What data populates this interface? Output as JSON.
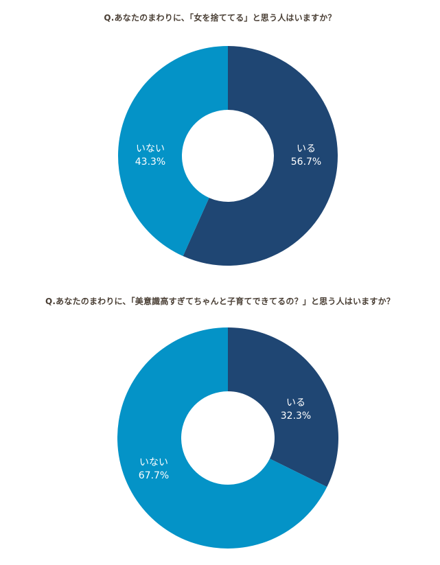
{
  "chart_data": [
    {
      "type": "pie",
      "title": "Q.あなたのまわりに、「女を捨ててる」と思う人はいますか？",
      "categories": [
        "いる",
        "いない"
      ],
      "values": [
        56.7,
        43.3
      ],
      "value_labels": [
        "56.7%",
        "43.3%"
      ],
      "colors": [
        "#1f4673",
        "#0493c7"
      ],
      "xlabel": "",
      "ylabel": "",
      "legend": "none"
    },
    {
      "type": "pie",
      "title": "Q.あなたのまわりに、「美意識高すぎてちゃんと子育てできてるの？」と思う人はいますか？",
      "categories": [
        "いる",
        "いない"
      ],
      "values": [
        32.3,
        67.7
      ],
      "value_labels": [
        "32.3%",
        "67.7%"
      ],
      "colors": [
        "#1f4673",
        "#0493c7"
      ],
      "xlabel": "",
      "ylabel": "",
      "legend": "none"
    }
  ]
}
